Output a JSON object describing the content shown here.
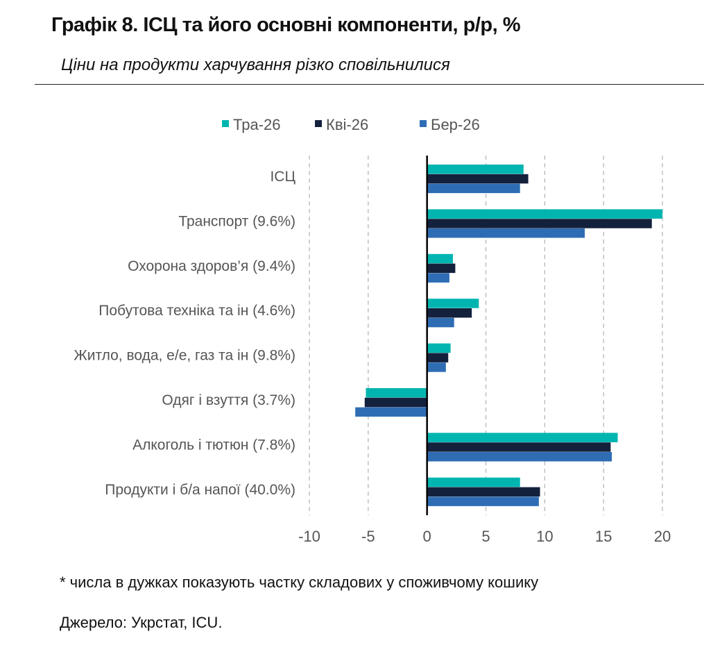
{
  "title": "Графік 8. ІСЦ та його основні компоненти, р/р, %",
  "subtitle": "Ціни на продукти харчування різко сповільнилися",
  "footnote": "* числа в дужках показують частку складових у споживчому кошику",
  "source": "Джерело: Укрстат, ICU.",
  "chart_data": {
    "type": "bar",
    "orientation": "horizontal",
    "categories": [
      "ІСЦ",
      "Транспорт (9.6%)",
      "Охорона здоров’я (9.4%)",
      "Побутова техніка та ін (4.6%)",
      "Житло, вода, е/е, газ та ін (9.8%)",
      "Одяг і взуття (3.7%)",
      "Алкоголь і тютюн (7.8%)",
      "Продукти і б/а напої (40.0%)"
    ],
    "series": [
      {
        "name": "Тра-26",
        "color": "#00B5B0",
        "values": [
          8.2,
          20.0,
          2.2,
          4.4,
          2.0,
          -5.2,
          16.2,
          7.9
        ]
      },
      {
        "name": "Кві-26",
        "color": "#14213D",
        "values": [
          8.6,
          19.1,
          2.4,
          3.8,
          1.8,
          -5.3,
          15.6,
          9.6
        ]
      },
      {
        "name": "Бер-26",
        "color": "#2E6DB4",
        "values": [
          7.9,
          13.4,
          1.9,
          2.3,
          1.6,
          -6.1,
          15.7,
          9.5
        ]
      }
    ],
    "xlim": [
      -10,
      20
    ],
    "xticks": [
      "-10",
      "-5",
      "0",
      "5",
      "10",
      "15",
      "20"
    ],
    "grid": true,
    "legend_position": "top"
  }
}
